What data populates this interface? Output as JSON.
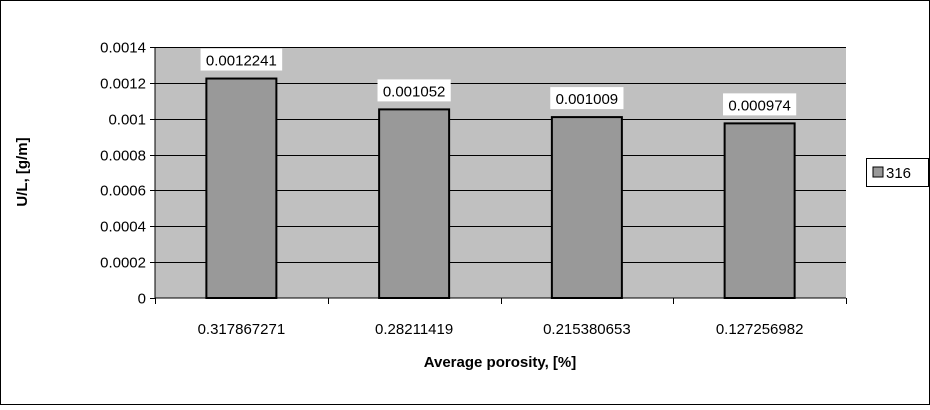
{
  "chart_data": {
    "type": "bar",
    "title": "",
    "xlabel": "Average porosity, [%]",
    "ylabel": "U/L, [g/m]",
    "categories": [
      "0.317867271",
      "0.28211419",
      "0.215380653",
      "0.127256982"
    ],
    "series": [
      {
        "name": "316",
        "values": [
          0.0012241,
          0.001052,
          0.001009,
          0.000974
        ],
        "data_labels": [
          "0.0012241",
          "0.001052",
          "0.001009",
          "0.000974"
        ],
        "color": "#999999"
      }
    ],
    "ylim": [
      0,
      0.0014
    ],
    "yticks": [
      0,
      0.0002,
      0.0004,
      0.0006,
      0.0008,
      0.001,
      0.0012,
      0.0014
    ],
    "ytick_labels": [
      "0",
      "0.0002",
      "0.0004",
      "0.0006",
      "0.0008",
      "0.001",
      "0.0012",
      "0.0014"
    ],
    "grid": true,
    "legend_position": "right",
    "plot_background": "#c0c0c0",
    "data_labels_shown": true
  }
}
